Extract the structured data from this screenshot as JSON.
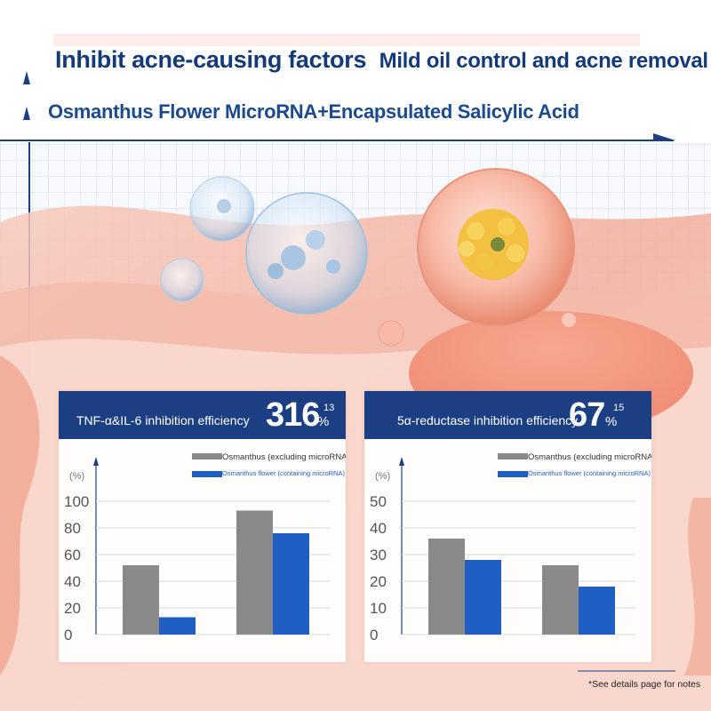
{
  "header": {
    "title": "Inhibit acne-causing factors",
    "subtitle": "Mild oil control and acne removal",
    "ingredients": "Osmanthus Flower MicroRNA+Encapsulated Salicylic Acid"
  },
  "colors": {
    "navy": "#1c3f84",
    "series_gray": "#8a8a8a",
    "series_blue": "#1f5fc4"
  },
  "panels": [
    {
      "banner_label": "TNF-α&IL-6 inhibition efficiency",
      "big_number": "316",
      "percent": "%",
      "note_ref": "13"
    },
    {
      "banner_label": "5α-reductase inhibition efficiency",
      "big_number": "67",
      "percent": "%",
      "note_ref": "15"
    }
  ],
  "footnote": "*See details page for notes",
  "chart_data": [
    {
      "type": "bar",
      "unit_label": "(%)",
      "categories": [
        "",
        ""
      ],
      "series": [
        {
          "name": "Osmanthus (excluding microRNA)",
          "values": [
            52,
            93
          ]
        },
        {
          "name": "Osmanthus flower (containing microRNA)",
          "values": [
            13,
            76
          ]
        }
      ],
      "yticks": [
        "0",
        "20",
        "40",
        "60",
        "80",
        "100"
      ],
      "ylim": [
        0,
        100
      ],
      "grid": true,
      "legend": "top-right"
    },
    {
      "type": "bar",
      "unit_label": "(%)",
      "categories": [
        "",
        ""
      ],
      "series": [
        {
          "name": "Osmanthus (excluding microRNA)",
          "values": [
            36,
            26
          ]
        },
        {
          "name": "Osmanthus flower (containing microRNA)",
          "values": [
            28,
            18
          ]
        }
      ],
      "yticks": [
        "0",
        "10",
        "20",
        "30",
        "40",
        "50"
      ],
      "ylim": [
        0,
        50
      ],
      "grid": true,
      "legend": "top-right"
    }
  ]
}
